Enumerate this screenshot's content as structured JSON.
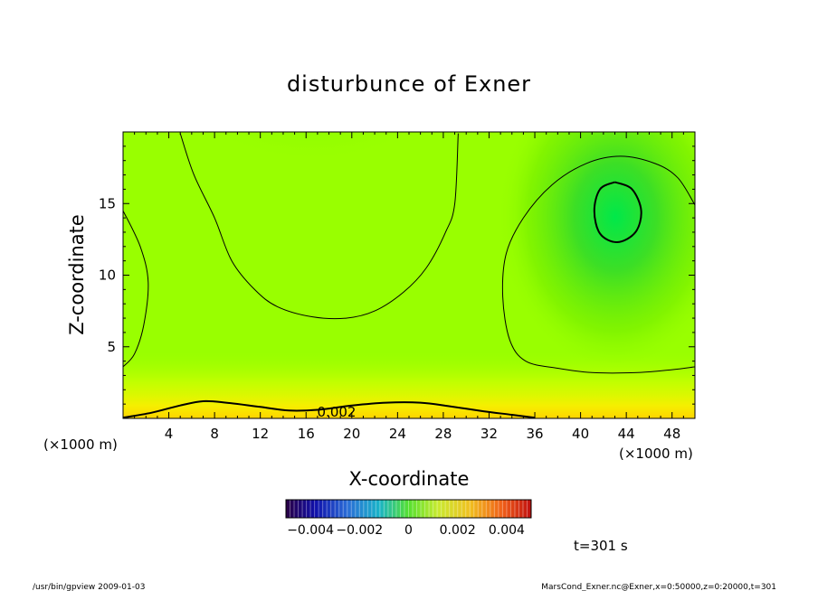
{
  "chart_data": {
    "type": "heatmap",
    "title": "disturbunce of Exner",
    "xlabel": "X-coordinate",
    "ylabel": "Z-coordinate",
    "x_unit": "(×1000 m)",
    "x_unit_secondary": "(×1000 m)",
    "xlim": [
      0,
      50
    ],
    "ylim": [
      0,
      20
    ],
    "xticks": [
      4,
      8,
      12,
      16,
      20,
      24,
      28,
      32,
      36,
      40,
      44,
      48
    ],
    "yticks": [
      5,
      10,
      15
    ],
    "contour_label": "0.002",
    "contours": [
      {
        "name": "contour-left-edge",
        "points": [
          [
            0,
            14.5
          ],
          [
            1.5,
            12
          ],
          [
            2.2,
            9.5
          ],
          [
            1.8,
            6.5
          ],
          [
            1,
            4.5
          ],
          [
            0,
            3.6
          ]
        ]
      },
      {
        "name": "contour-upper-center",
        "points": [
          [
            5,
            19.9
          ],
          [
            6.2,
            17
          ],
          [
            8,
            14
          ],
          [
            9.5,
            11
          ],
          [
            11.5,
            9
          ],
          [
            13.5,
            7.8
          ],
          [
            16.5,
            7.1
          ],
          [
            19.5,
            7
          ],
          [
            22,
            7.5
          ],
          [
            24.5,
            8.8
          ],
          [
            26.5,
            10.5
          ],
          [
            28.2,
            13
          ],
          [
            29,
            15
          ],
          [
            29.3,
            19.9
          ]
        ]
      },
      {
        "name": "contour-right-blob",
        "points": [
          [
            50,
            14.9
          ],
          [
            48.5,
            16.8
          ],
          [
            46.5,
            17.8
          ],
          [
            43.5,
            18.3
          ],
          [
            40.5,
            17.8
          ],
          [
            37.5,
            16.3
          ],
          [
            35,
            14
          ],
          [
            33.5,
            11.5
          ],
          [
            33.2,
            8.5
          ],
          [
            33.8,
            5.5
          ],
          [
            35.2,
            4
          ],
          [
            38,
            3.5
          ],
          [
            41,
            3.2
          ],
          [
            45,
            3.2
          ],
          [
            48,
            3.4
          ],
          [
            50,
            3.6
          ]
        ]
      },
      {
        "name": "contour-inner-max",
        "points": [
          [
            43,
            16.5
          ],
          [
            44.5,
            16
          ],
          [
            45.3,
            14.5
          ],
          [
            44.8,
            13
          ],
          [
            43.2,
            12.3
          ],
          [
            41.7,
            12.9
          ],
          [
            41.2,
            14.5
          ],
          [
            41.7,
            16
          ],
          [
            43,
            16.5
          ]
        ]
      },
      {
        "name": "contour-bottom",
        "points": [
          [
            0,
            0.05
          ],
          [
            2.5,
            0.4
          ],
          [
            5,
            0.9
          ],
          [
            7,
            1.2
          ],
          [
            9,
            1.1
          ],
          [
            12,
            0.8
          ],
          [
            14.5,
            0.55
          ],
          [
            17,
            0.6
          ],
          [
            20,
            0.9
          ],
          [
            23,
            1.1
          ],
          [
            26,
            1.1
          ],
          [
            28.5,
            0.85
          ],
          [
            31.5,
            0.5
          ],
          [
            34,
            0.25
          ],
          [
            36,
            0.05
          ]
        ]
      }
    ],
    "colorbar": {
      "ticks": [
        "-0.004",
        "-0.002",
        "0",
        "0.002",
        "0.004"
      ],
      "range": [
        -0.005,
        0.005
      ]
    }
  },
  "annotations": {
    "time_label": "t=301 s",
    "footer_left": "/usr/bin/gpview  2009-01-03",
    "footer_right": "MarsCond_Exner.nc@Exner,x=0:50000,z=0:20000,t=301"
  },
  "colors": {
    "field_low": "#009a18",
    "field_mid": "#99ff00",
    "field_high": "#ffd700",
    "contour": "#000000"
  }
}
